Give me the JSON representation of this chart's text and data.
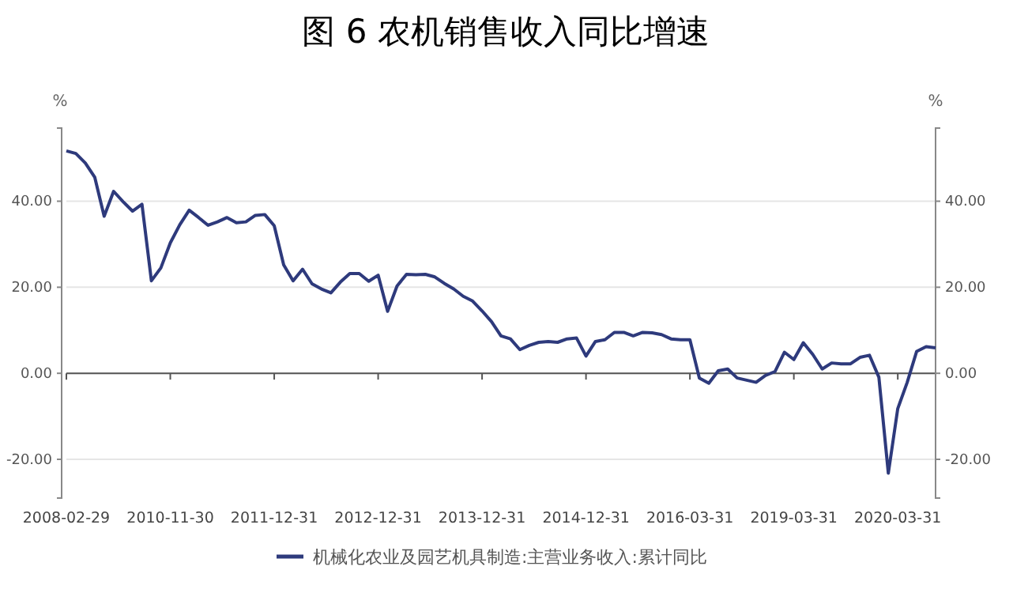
{
  "chart_data": {
    "type": "line",
    "title": "图 6  农机销售收入同比增速",
    "ylabel": "%",
    "y2label": "%",
    "categories": [
      "2008-02-29",
      null,
      null,
      null,
      null,
      null,
      null,
      null,
      null,
      null,
      null,
      "2010-11-30",
      null,
      null,
      null,
      null,
      null,
      null,
      null,
      null,
      null,
      null,
      "2011-12-31",
      null,
      null,
      null,
      null,
      null,
      null,
      null,
      null,
      null,
      null,
      "2012-12-31",
      null,
      null,
      null,
      null,
      null,
      null,
      null,
      null,
      null,
      null,
      "2013-12-31",
      null,
      null,
      null,
      null,
      null,
      null,
      null,
      null,
      null,
      null,
      "2014-12-31",
      null,
      null,
      null,
      null,
      null,
      null,
      null,
      null,
      null,
      null,
      "2016-03-31",
      null,
      null,
      null,
      null,
      null,
      null,
      null,
      null,
      null,
      null,
      "2019-03-31",
      null,
      null,
      null,
      null,
      null,
      null,
      null,
      null,
      null,
      null,
      "2020-03-31",
      null,
      null,
      null,
      null
    ],
    "series": [
      {
        "name": "机械化农业及园艺机具制造:主营业务收入:累计同比",
        "color": "#2e3a7c",
        "values": [
          51.7,
          51.1,
          48.9,
          45.6,
          36.5,
          42.3,
          39.9,
          37.7,
          39.3,
          21.5,
          24.5,
          30.3,
          34.5,
          37.9,
          36.2,
          34.4,
          35.2,
          36.2,
          35.0,
          35.2,
          36.7,
          36.9,
          34.3,
          25.2,
          21.5,
          24.2,
          20.8,
          19.6,
          18.7,
          21.2,
          23.2,
          23.2,
          21.4,
          22.8,
          14.4,
          20.3,
          23.0,
          22.9,
          23.0,
          22.4,
          20.9,
          19.6,
          17.9,
          16.8,
          14.5,
          12.0,
          8.7,
          8.0,
          5.5,
          6.5,
          7.2,
          7.4,
          7.2,
          8.0,
          8.2,
          4.0,
          7.4,
          7.8,
          9.5,
          9.5,
          8.7,
          9.5,
          9.4,
          9.0,
          8.0,
          7.8,
          7.8,
          -1.1,
          -2.3,
          0.6,
          1.0,
          -1.1,
          -1.6,
          -2.1,
          -0.5,
          0.4,
          4.9,
          3.2,
          7.1,
          4.4,
          1.0,
          2.4,
          2.2,
          2.2,
          3.7,
          4.2,
          -0.9,
          -23.2,
          -8.2,
          -2.1,
          5.1,
          6.2,
          5.9
        ]
      }
    ],
    "ylim": [
      -29,
      57
    ],
    "yticks": [
      {
        "value": -20,
        "label": "-20.00"
      },
      {
        "value": 0,
        "label": "0.00"
      },
      {
        "value": 20,
        "label": "20.00"
      },
      {
        "value": 40,
        "label": "40.00"
      }
    ],
    "y2lim": [
      -29,
      57
    ],
    "y2ticks": [
      {
        "value": -20,
        "label": "-20.00"
      },
      {
        "value": 0,
        "label": "0.00"
      },
      {
        "value": 20,
        "label": "20.00"
      },
      {
        "value": 40,
        "label": "40.00"
      }
    ],
    "grid": "y",
    "legend": "bottom",
    "marker": "none",
    "line_style": "solid"
  }
}
